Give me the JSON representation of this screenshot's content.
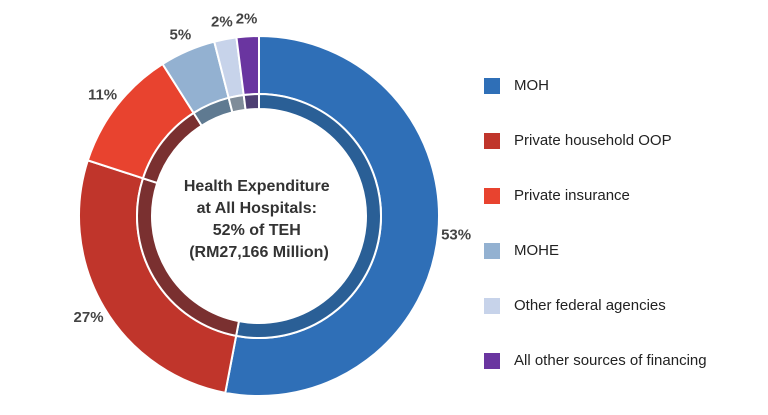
{
  "chart_data": {
    "type": "pie",
    "style": "donut",
    "center_label": [
      "Health Expenditure",
      "at All Hospitals:",
      "52% of TEH",
      "(RM27,166 Million)"
    ],
    "categories": [
      "MOH",
      "Private household OOP",
      "Private insurance",
      "MOHE",
      "Other federal agencies",
      "All other sources of financing"
    ],
    "values": [
      53,
      27,
      11,
      5,
      2,
      2
    ],
    "value_labels": [
      "53%",
      "27%",
      "11%",
      "5%",
      "2%",
      "2%"
    ],
    "colors": [
      "#2f6fb7",
      "#c0352b",
      "#e8432f",
      "#93b1d1",
      "#c7d3ea",
      "#6a35a0"
    ],
    "inner_colors": [
      "#2a5f96",
      "#7a3030",
      "#7a3030",
      "#5f7a91",
      "#7f8c99",
      "#4e3f73"
    ],
    "legend_position": "right"
  }
}
